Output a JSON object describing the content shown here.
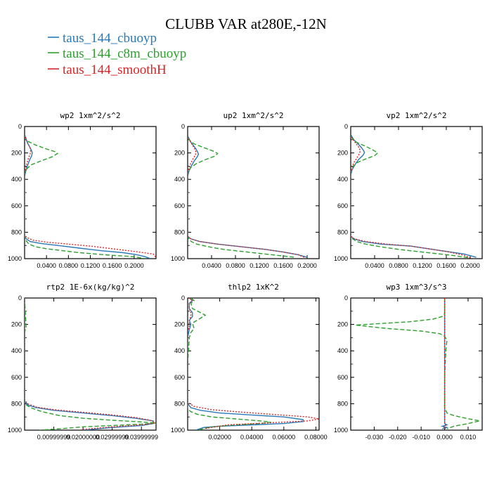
{
  "title": "CLUBB VAR at280E,-12N",
  "legend": [
    {
      "label": "taus_144_cbuoyp",
      "color": "#2a7ab9",
      "dash": "solid"
    },
    {
      "label": "taus_144_c8m_cbuoyp",
      "color": "#2ca02c",
      "dash": "dashed"
    },
    {
      "label": "taus_144_smoothH",
      "color": "#d62728",
      "dash": "dotted"
    }
  ],
  "chart_data": [
    {
      "type": "line",
      "title": "wp2  1xm^2/s^2",
      "ylim": [
        1000,
        0
      ],
      "yticks": [
        "0",
        "200",
        "400",
        "600",
        "800",
        "1000"
      ],
      "ytick_values": [
        0,
        200,
        400,
        600,
        800,
        1000
      ],
      "xlim": [
        0,
        0.24
      ],
      "xticks": [
        "0.0400",
        "0.0800",
        "0.1200",
        "0.1600",
        "0.2000"
      ],
      "xtick_values": [
        0.04,
        0.08,
        0.12,
        0.16,
        0.2
      ],
      "series": [
        {
          "name": "taus_144_cbuoyp",
          "x": [
            0,
            0.003,
            0.006,
            0.01,
            0.013,
            0.014,
            0.013,
            0.009,
            0.005,
            0.002,
            0,
            0,
            0,
            0,
            0.003,
            0.01,
            0.03,
            0.06,
            0.1,
            0.14,
            0.18,
            0.205,
            0.22,
            0.23
          ],
          "y": [
            60,
            100,
            130,
            160,
            185,
            200,
            220,
            255,
            300,
            340,
            380,
            600,
            800,
            830,
            850,
            870,
            885,
            900,
            920,
            940,
            955,
            970,
            985,
            1000
          ]
        },
        {
          "name": "taus_144_c8m_cbuoyp",
          "x": [
            0,
            0.005,
            0.02,
            0.04,
            0.055,
            0.06,
            0.05,
            0.03,
            0.012,
            0.004,
            0,
            0,
            0,
            0,
            0.002,
            0.004,
            0.008,
            0.02,
            0.04,
            0.07,
            0.1,
            0.13,
            0.16,
            0.2,
            0.22
          ],
          "y": [
            70,
            110,
            140,
            170,
            190,
            205,
            230,
            260,
            290,
            320,
            360,
            600,
            800,
            830,
            850,
            870,
            890,
            910,
            925,
            940,
            955,
            965,
            975,
            985,
            1000
          ]
        },
        {
          "name": "taus_144_smoothH",
          "x": [
            0,
            0.003,
            0.006,
            0.01,
            0.011,
            0.01,
            0.007,
            0.004,
            0.002,
            0,
            0,
            0,
            0,
            0.004,
            0.015,
            0.04,
            0.08,
            0.12,
            0.16,
            0.2,
            0.235,
            0.24
          ],
          "y": [
            60,
            100,
            130,
            160,
            185,
            210,
            240,
            280,
            320,
            360,
            600,
            790,
            820,
            840,
            860,
            875,
            890,
            905,
            925,
            945,
            965,
            990
          ]
        }
      ]
    },
    {
      "type": "line",
      "title": "up2  1xm^2/s^2",
      "ylim": [
        1000,
        0
      ],
      "yticks": [
        "0",
        "200",
        "400",
        "600",
        "800",
        "1000"
      ],
      "ytick_values": [
        0,
        200,
        400,
        600,
        800,
        1000
      ],
      "xlim": [
        0,
        0.22
      ],
      "xticks": [
        "0.0400",
        "0.0800",
        "0.1200",
        "0.1600",
        "0.2000"
      ],
      "xtick_values": [
        0.04,
        0.08,
        0.12,
        0.16,
        0.2
      ],
      "series": [
        {
          "name": "taus_144_cbuoyp",
          "x": [
            0,
            0.004,
            0.009,
            0.014,
            0.017,
            0.018,
            0.016,
            0.011,
            0.006,
            0.002,
            0,
            0,
            0,
            0,
            0.005,
            0.02,
            0.05,
            0.09,
            0.13,
            0.16,
            0.185,
            0.2
          ],
          "y": [
            70,
            110,
            140,
            170,
            195,
            210,
            230,
            260,
            300,
            340,
            380,
            600,
            800,
            830,
            850,
            870,
            890,
            910,
            930,
            950,
            970,
            990
          ]
        },
        {
          "name": "taus_144_c8m_cbuoyp",
          "x": [
            0,
            0.01,
            0.03,
            0.045,
            0.05,
            0.045,
            0.03,
            0.015,
            0.005,
            0,
            0,
            0,
            0,
            0.002,
            0.006,
            0.015,
            0.035,
            0.06,
            0.09,
            0.12,
            0.15,
            0.18
          ],
          "y": [
            90,
            130,
            165,
            190,
            205,
            225,
            250,
            280,
            310,
            350,
            600,
            800,
            830,
            850,
            870,
            890,
            910,
            930,
            945,
            960,
            975,
            990
          ]
        },
        {
          "name": "taus_144_smoothH",
          "x": [
            0,
            0.004,
            0.008,
            0.012,
            0.014,
            0.013,
            0.009,
            0.005,
            0.002,
            0,
            0,
            0,
            0,
            0.005,
            0.02,
            0.05,
            0.09,
            0.13,
            0.16,
            0.185,
            0.195
          ],
          "y": [
            70,
            110,
            140,
            170,
            195,
            215,
            245,
            280,
            320,
            360,
            600,
            800,
            830,
            850,
            870,
            890,
            910,
            930,
            950,
            970,
            990
          ]
        }
      ]
    },
    {
      "type": "line",
      "title": "vp2  1xm^2/s^2",
      "ylim": [
        1000,
        0
      ],
      "yticks": [
        "0",
        "200",
        "400",
        "600",
        "800",
        "1000"
      ],
      "ytick_values": [
        0,
        200,
        400,
        600,
        800,
        1000
      ],
      "xlim": [
        0,
        0.22
      ],
      "xticks": [
        "0.0400",
        "0.0800",
        "0.1200",
        "0.1600",
        "0.2000"
      ],
      "xtick_values": [
        0.04,
        0.08,
        0.12,
        0.16,
        0.2
      ],
      "series": [
        {
          "name": "taus_144_cbuoyp",
          "x": [
            0,
            0.005,
            0.012,
            0.018,
            0.022,
            0.023,
            0.02,
            0.013,
            0.007,
            0.002,
            0,
            0,
            0,
            0,
            0.005,
            0.02,
            0.05,
            0.1,
            0.13,
            0.16,
            0.19,
            0.21
          ],
          "y": [
            60,
            100,
            130,
            160,
            185,
            200,
            220,
            250,
            290,
            330,
            370,
            600,
            800,
            830,
            850,
            870,
            890,
            905,
            925,
            945,
            965,
            990
          ]
        },
        {
          "name": "taus_144_c8m_cbuoyp",
          "x": [
            0,
            0.01,
            0.025,
            0.038,
            0.045,
            0.04,
            0.025,
            0.012,
            0.004,
            0,
            0,
            0,
            0,
            0.003,
            0.01,
            0.025,
            0.05,
            0.08,
            0.11,
            0.14,
            0.17,
            0.2
          ],
          "y": [
            80,
            120,
            150,
            180,
            200,
            220,
            245,
            270,
            300,
            340,
            600,
            800,
            830,
            850,
            870,
            890,
            910,
            930,
            945,
            960,
            975,
            995
          ]
        },
        {
          "name": "taus_144_smoothH",
          "x": [
            0,
            0.004,
            0.009,
            0.014,
            0.016,
            0.014,
            0.01,
            0.005,
            0.002,
            0,
            0,
            0,
            0,
            0.006,
            0.025,
            0.06,
            0.1,
            0.13,
            0.165,
            0.19,
            0.2
          ],
          "y": [
            60,
            100,
            130,
            160,
            185,
            210,
            240,
            275,
            315,
            360,
            600,
            800,
            830,
            850,
            870,
            890,
            905,
            925,
            950,
            975,
            995
          ]
        }
      ]
    },
    {
      "type": "line",
      "title": "rtp2  1E-6x(kg/kg)^2",
      "ylim": [
        1000,
        0
      ],
      "yticks": [
        "0",
        "200",
        "400",
        "600",
        "800",
        "1000"
      ],
      "ytick_values": [
        0,
        200,
        400,
        600,
        800,
        1000
      ],
      "xlim": [
        0,
        0.045
      ],
      "xticks": [
        "0.00999999",
        "0.02000000",
        "0.02999999",
        "0.03999999"
      ],
      "xtick_values": [
        0.01,
        0.02,
        0.03,
        0.04
      ],
      "series": [
        {
          "name": "taus_144_cbuoyp",
          "x": [
            0,
            0,
            0,
            0,
            0.001,
            0.004,
            0.01,
            0.02,
            0.03,
            0.038,
            0.044,
            0.044,
            0.04,
            0.03,
            0.02
          ],
          "y": [
            0,
            300,
            600,
            780,
            810,
            830,
            850,
            870,
            890,
            910,
            930,
            950,
            965,
            980,
            1000
          ]
        },
        {
          "name": "taus_144_c8m_cbuoyp",
          "x": [
            0,
            0.0005,
            0,
            0,
            0,
            0.002,
            0.006,
            0.012,
            0.02,
            0.03,
            0.038,
            0.045,
            0.04,
            0.03,
            0.02,
            0.012,
            0.005
          ],
          "y": [
            0,
            220,
            260,
            600,
            800,
            830,
            860,
            890,
            910,
            925,
            935,
            945,
            955,
            965,
            975,
            990,
            1000
          ]
        },
        {
          "name": "taus_144_smoothH",
          "x": [
            0,
            0,
            0,
            0,
            0.001,
            0.004,
            0.01,
            0.02,
            0.03,
            0.038,
            0.043,
            0.045,
            0.04,
            0.03,
            0.02
          ],
          "y": [
            0,
            300,
            600,
            770,
            800,
            825,
            845,
            865,
            885,
            905,
            925,
            945,
            960,
            975,
            995
          ]
        }
      ]
    },
    {
      "type": "line",
      "title": "thlp2  1xK^2",
      "ylim": [
        1000,
        0
      ],
      "yticks": [
        "0",
        "200",
        "400",
        "600",
        "800",
        "1000"
      ],
      "ytick_values": [
        0,
        200,
        400,
        600,
        800,
        1000
      ],
      "xlim": [
        0,
        0.082
      ],
      "xticks": [
        "0.02000",
        "0.04000",
        "0.06000",
        "0.08000"
      ],
      "xtick_values": [
        0.02,
        0.04,
        0.06,
        0.08
      ],
      "series": [
        {
          "name": "taus_144_cbuoyp",
          "x": [
            0.001,
            0.003,
            0.001,
            0.001,
            0.003,
            0.003,
            0.001,
            0.002,
            0.001,
            0,
            0,
            0,
            0,
            0.002,
            0.008,
            0.02,
            0.04,
            0.06,
            0.072,
            0.072,
            0.06,
            0.04,
            0.02,
            0.01,
            0.005
          ],
          "y": [
            0,
            20,
            40,
            80,
            110,
            140,
            170,
            200,
            240,
            300,
            500,
            700,
            800,
            830,
            850,
            870,
            885,
            900,
            920,
            935,
            950,
            960,
            970,
            980,
            1000
          ]
        },
        {
          "name": "taus_144_c8m_cbuoyp",
          "x": [
            0.002,
            0.004,
            0.002,
            0.003,
            0.008,
            0.011,
            0.007,
            0.003,
            0.004,
            0.002,
            0.001,
            0,
            0,
            0,
            0,
            0.002,
            0.006,
            0.015,
            0.03,
            0.045,
            0.052,
            0.045,
            0.03,
            0.015,
            0.006
          ],
          "y": [
            0,
            20,
            40,
            80,
            110,
            130,
            160,
            190,
            230,
            260,
            300,
            500,
            700,
            800,
            840,
            860,
            880,
            900,
            915,
            930,
            940,
            950,
            960,
            975,
            1000
          ]
        },
        {
          "name": "taus_144_smoothH",
          "x": [
            0.001,
            0.003,
            0.001,
            0.001,
            0.002,
            0.002,
            0.001,
            0.001,
            0,
            0,
            0,
            0,
            0.004,
            0.015,
            0.035,
            0.058,
            0.075,
            0.082,
            0.075,
            0.05,
            0.025,
            0.01
          ],
          "y": [
            0,
            20,
            40,
            80,
            110,
            140,
            170,
            210,
            260,
            300,
            500,
            790,
            820,
            845,
            865,
            885,
            900,
            915,
            930,
            945,
            960,
            990
          ]
        }
      ]
    },
    {
      "type": "line",
      "title": "wp3  1xm^3/s^3",
      "ylim": [
        1000,
        0
      ],
      "yticks": [
        "0",
        "200",
        "400",
        "600",
        "800",
        "1000"
      ],
      "ytick_values": [
        0,
        200,
        400,
        600,
        800,
        1000
      ],
      "xlim": [
        -0.04,
        0.016
      ],
      "xticks": [
        "-0.030",
        "-0.020",
        "-0.010",
        "0.000",
        "0.010"
      ],
      "xtick_values": [
        -0.03,
        -0.02,
        -0.01,
        0.0,
        0.01
      ],
      "series": [
        {
          "name": "taus_144_cbuoyp",
          "x": [
            0,
            0,
            0,
            0,
            0,
            0,
            0,
            0,
            0,
            0,
            0.001,
            -0.001,
            0.001,
            -0.001
          ],
          "y": [
            0,
            100,
            150,
            200,
            250,
            300,
            400,
            600,
            800,
            950,
            960,
            970,
            980,
            990
          ]
        },
        {
          "name": "taus_144_c8m_cbuoyp",
          "x": [
            0,
            0,
            0,
            -0.001,
            -0.005,
            -0.015,
            -0.038,
            -0.025,
            -0.01,
            -0.002,
            0,
            0.001,
            0.0005,
            0,
            0,
            0.001,
            0.004,
            0.009,
            0.015,
            0.01,
            0.004,
            0.001
          ],
          "y": [
            0,
            100,
            120,
            140,
            160,
            180,
            205,
            230,
            250,
            270,
            290,
            320,
            400,
            600,
            830,
            870,
            890,
            910,
            930,
            950,
            970,
            990
          ]
        },
        {
          "name": "taus_144_smoothH",
          "x": [
            0,
            0,
            0,
            0,
            0,
            0,
            0,
            0,
            0,
            0,
            0.0005,
            -0.0005,
            0.001
          ],
          "y": [
            0,
            100,
            150,
            200,
            250,
            300,
            400,
            600,
            800,
            950,
            965,
            980,
            995
          ]
        }
      ]
    }
  ]
}
